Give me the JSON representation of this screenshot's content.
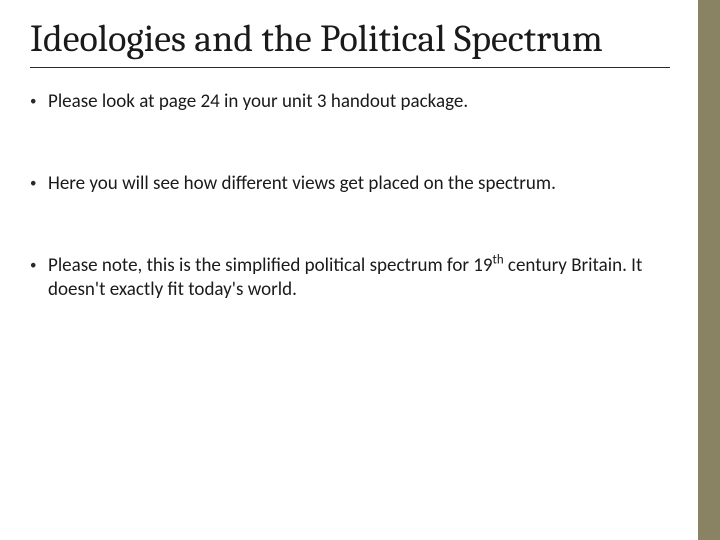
{
  "slide": {
    "title": "Ideologies and the Political Spectrum",
    "bullets": [
      "Please look at page 24 in your unit 3 handout package.",
      "Here you will see how different views get placed on the spectrum.",
      "Please note, this is the simplified political spectrum for 19<sup>th</sup> century Britain. It doesn't exactly fit today's world."
    ]
  },
  "style": {
    "accent_color": "#8a8363",
    "background_color": "#ffffff",
    "title_fontsize_pt": 38,
    "body_fontsize_pt": 19,
    "title_font": "Cambria",
    "body_font": "Calibri",
    "text_color": "#1a1a1a"
  }
}
